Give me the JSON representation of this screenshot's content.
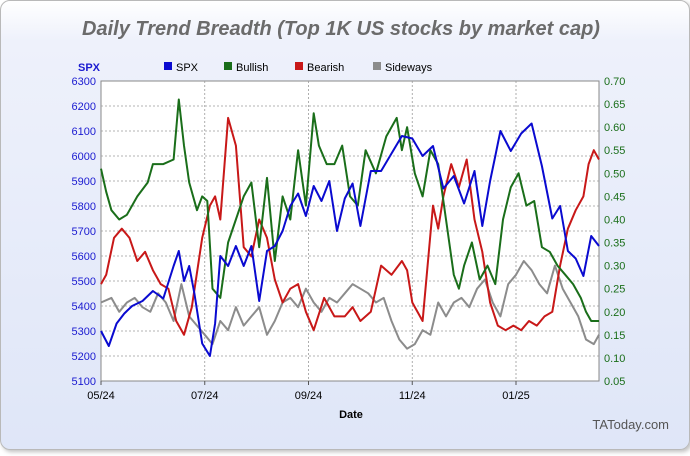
{
  "chart_data": {
    "type": "line",
    "title": "Daily Trend Breadth (Top 1K US stocks by market cap)",
    "xlabel": "Date",
    "y_left_label": "SPX",
    "x_ticks": [
      "05/24",
      "07/24",
      "09/24",
      "11/24",
      "01/25"
    ],
    "x_tick_months": [
      0,
      2,
      4,
      6,
      8
    ],
    "x_range_months": [
      0,
      9.6
    ],
    "y_left": {
      "ylim": [
        5100,
        6300
      ],
      "ticks": [
        5100,
        5200,
        5300,
        5400,
        5500,
        5600,
        5700,
        5800,
        5900,
        6000,
        6100,
        6200,
        6300
      ]
    },
    "y_right": {
      "ylim": [
        0.05,
        0.7
      ],
      "ticks": [
        "0.05",
        "0.10",
        "0.15",
        "0.20",
        "0.25",
        "0.30",
        "0.35",
        "0.40",
        "0.45",
        "0.50",
        "0.55",
        "0.60",
        "0.65",
        "0.70"
      ]
    },
    "grid": true,
    "legend_position": "top",
    "watermark": "TAToday.com",
    "series": [
      {
        "name": "SPX",
        "axis": "left",
        "color": "#0a0ad0",
        "x": [
          0,
          0.15,
          0.3,
          0.45,
          0.6,
          0.8,
          1.0,
          1.2,
          1.4,
          1.5,
          1.6,
          1.7,
          1.8,
          1.95,
          2.1,
          2.2,
          2.3,
          2.45,
          2.6,
          2.75,
          2.9,
          3.05,
          3.2,
          3.35,
          3.5,
          3.65,
          3.8,
          3.95,
          4.1,
          4.25,
          4.4,
          4.55,
          4.7,
          4.85,
          5.0,
          5.2,
          5.4,
          5.6,
          5.8,
          6.0,
          6.2,
          6.4,
          6.6,
          6.8,
          7.0,
          7.2,
          7.35,
          7.5,
          7.6,
          7.7,
          7.9,
          8.1,
          8.3,
          8.5,
          8.7,
          8.85,
          9.0,
          9.15,
          9.3,
          9.45,
          9.6
        ],
        "values": [
          5300,
          5240,
          5330,
          5370,
          5400,
          5420,
          5460,
          5430,
          5560,
          5620,
          5500,
          5560,
          5450,
          5250,
          5200,
          5330,
          5600,
          5560,
          5640,
          5560,
          5640,
          5420,
          5620,
          5640,
          5700,
          5800,
          5850,
          5760,
          5880,
          5820,
          5900,
          5700,
          5830,
          5890,
          5720,
          5940,
          5940,
          6010,
          6080,
          6070,
          6000,
          6040,
          5870,
          5920,
          5810,
          5940,
          5720,
          5900,
          6000,
          6100,
          6020,
          6090,
          6130,
          5960,
          5750,
          5800,
          5620,
          5590,
          5520,
          5680,
          5640
        ]
      },
      {
        "name": "Bullish",
        "axis": "right",
        "color": "#1a6e1a",
        "x": [
          0,
          0.1,
          0.2,
          0.35,
          0.5,
          0.7,
          0.9,
          1.0,
          1.2,
          1.4,
          1.5,
          1.6,
          1.7,
          1.85,
          1.95,
          2.05,
          2.15,
          2.3,
          2.45,
          2.6,
          2.75,
          2.9,
          3.05,
          3.2,
          3.35,
          3.5,
          3.65,
          3.8,
          3.95,
          4.1,
          4.2,
          4.35,
          4.5,
          4.65,
          4.8,
          4.95,
          5.1,
          5.3,
          5.5,
          5.7,
          5.8,
          5.9,
          6.05,
          6.2,
          6.35,
          6.5,
          6.65,
          6.8,
          6.9,
          7.0,
          7.15,
          7.3,
          7.45,
          7.6,
          7.75,
          7.9,
          8.05,
          8.2,
          8.35,
          8.5,
          8.65,
          8.8,
          8.95,
          9.1,
          9.25,
          9.35,
          9.45,
          9.6
        ],
        "values": [
          0.51,
          0.46,
          0.42,
          0.4,
          0.41,
          0.45,
          0.48,
          0.52,
          0.52,
          0.53,
          0.66,
          0.56,
          0.48,
          0.42,
          0.45,
          0.44,
          0.25,
          0.23,
          0.35,
          0.4,
          0.45,
          0.48,
          0.34,
          0.49,
          0.31,
          0.45,
          0.4,
          0.55,
          0.43,
          0.63,
          0.56,
          0.52,
          0.52,
          0.56,
          0.45,
          0.43,
          0.55,
          0.5,
          0.58,
          0.62,
          0.55,
          0.6,
          0.5,
          0.45,
          0.55,
          0.52,
          0.4,
          0.28,
          0.25,
          0.3,
          0.35,
          0.27,
          0.3,
          0.26,
          0.4,
          0.47,
          0.5,
          0.43,
          0.44,
          0.34,
          0.33,
          0.3,
          0.28,
          0.26,
          0.23,
          0.2,
          0.18,
          0.18
        ]
      },
      {
        "name": "Bearish",
        "axis": "right",
        "color": "#c81818",
        "x": [
          0,
          0.1,
          0.25,
          0.4,
          0.55,
          0.7,
          0.85,
          1.0,
          1.15,
          1.3,
          1.45,
          1.6,
          1.75,
          1.95,
          2.1,
          2.2,
          2.3,
          2.45,
          2.6,
          2.75,
          2.9,
          3.05,
          3.2,
          3.35,
          3.5,
          3.65,
          3.8,
          3.95,
          4.1,
          4.3,
          4.5,
          4.7,
          4.85,
          5.0,
          5.2,
          5.4,
          5.6,
          5.8,
          5.9,
          6.0,
          6.2,
          6.4,
          6.5,
          6.6,
          6.75,
          6.9,
          7.05,
          7.2,
          7.35,
          7.5,
          7.65,
          7.8,
          7.95,
          8.1,
          8.25,
          8.4,
          8.55,
          8.7,
          8.85,
          9.0,
          9.15,
          9.3,
          9.4,
          9.5,
          9.6
        ],
        "values": [
          0.26,
          0.28,
          0.36,
          0.38,
          0.36,
          0.31,
          0.33,
          0.29,
          0.26,
          0.25,
          0.18,
          0.15,
          0.21,
          0.36,
          0.43,
          0.45,
          0.4,
          0.62,
          0.56,
          0.34,
          0.32,
          0.4,
          0.36,
          0.27,
          0.22,
          0.25,
          0.26,
          0.2,
          0.16,
          0.23,
          0.19,
          0.19,
          0.21,
          0.18,
          0.2,
          0.3,
          0.28,
          0.31,
          0.29,
          0.22,
          0.18,
          0.43,
          0.38,
          0.45,
          0.52,
          0.47,
          0.53,
          0.4,
          0.33,
          0.22,
          0.17,
          0.16,
          0.17,
          0.16,
          0.18,
          0.17,
          0.19,
          0.2,
          0.3,
          0.38,
          0.42,
          0.45,
          0.52,
          0.55,
          0.53
        ]
      },
      {
        "name": "Sideways",
        "axis": "right",
        "color": "#8c8c8c",
        "x": [
          0,
          0.2,
          0.35,
          0.5,
          0.65,
          0.8,
          0.95,
          1.1,
          1.25,
          1.4,
          1.55,
          1.7,
          1.85,
          2.0,
          2.15,
          2.3,
          2.45,
          2.6,
          2.75,
          2.9,
          3.05,
          3.2,
          3.35,
          3.5,
          3.65,
          3.8,
          3.95,
          4.1,
          4.25,
          4.4,
          4.55,
          4.7,
          4.85,
          5.0,
          5.15,
          5.3,
          5.45,
          5.6,
          5.75,
          5.9,
          6.05,
          6.2,
          6.35,
          6.5,
          6.65,
          6.8,
          6.95,
          7.1,
          7.25,
          7.4,
          7.55,
          7.7,
          7.85,
          8.0,
          8.15,
          8.3,
          8.45,
          8.6,
          8.75,
          8.9,
          9.05,
          9.2,
          9.35,
          9.5,
          9.6
        ],
        "values": [
          0.22,
          0.23,
          0.2,
          0.22,
          0.23,
          0.21,
          0.2,
          0.24,
          0.22,
          0.18,
          0.26,
          0.19,
          0.17,
          0.15,
          0.13,
          0.18,
          0.16,
          0.21,
          0.17,
          0.19,
          0.21,
          0.15,
          0.18,
          0.22,
          0.23,
          0.21,
          0.25,
          0.22,
          0.2,
          0.23,
          0.22,
          0.24,
          0.26,
          0.25,
          0.24,
          0.22,
          0.23,
          0.18,
          0.14,
          0.12,
          0.13,
          0.16,
          0.15,
          0.22,
          0.19,
          0.22,
          0.23,
          0.21,
          0.25,
          0.27,
          0.22,
          0.19,
          0.26,
          0.28,
          0.31,
          0.29,
          0.26,
          0.24,
          0.3,
          0.25,
          0.22,
          0.19,
          0.14,
          0.13,
          0.15
        ]
      }
    ]
  }
}
